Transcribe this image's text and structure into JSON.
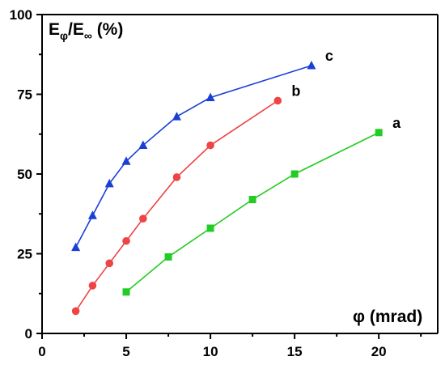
{
  "chart_data": {
    "type": "line",
    "title": "",
    "xlabel": "φ (mrad)",
    "ylabel": "Eφ/E∞ (%)",
    "ylabel_parts": {
      "main1": "E",
      "sub1": "φ",
      "main2": "/E",
      "sub2": "∞",
      "suffix": " (%)"
    },
    "xlim": [
      0,
      23.5
    ],
    "ylim": [
      0,
      100
    ],
    "xticks": [
      0,
      5,
      10,
      15,
      20
    ],
    "yticks": [
      0,
      25,
      50,
      75,
      100
    ],
    "grid": false,
    "series": [
      {
        "name": "a",
        "color": "#22cc22",
        "marker": "square",
        "x": [
          5,
          7.5,
          10,
          12.5,
          15,
          20
        ],
        "y": [
          13,
          24,
          33,
          42,
          50,
          63
        ]
      },
      {
        "name": "b",
        "color": "#ee4444",
        "marker": "circle",
        "x": [
          2,
          3,
          4,
          5,
          6,
          8,
          10,
          14
        ],
        "y": [
          7,
          15,
          22,
          29,
          36,
          49,
          59,
          73
        ]
      },
      {
        "name": "c",
        "color": "#1a3fd6",
        "marker": "triangle",
        "x": [
          2,
          3,
          4,
          5,
          6,
          8,
          10,
          16
        ],
        "y": [
          27,
          37,
          47,
          54,
          59,
          68,
          74,
          84
        ]
      }
    ]
  }
}
